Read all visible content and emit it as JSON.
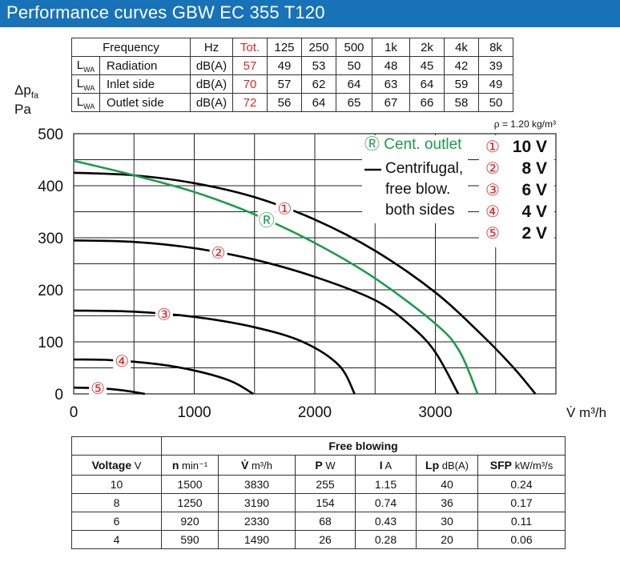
{
  "title": "Performance curves GBW EC 355 T120",
  "sound_table": {
    "headers": [
      "Frequency",
      "Hz",
      "Tot.",
      "125",
      "250",
      "500",
      "1k",
      "2k",
      "4k",
      "8k"
    ],
    "rows": [
      {
        "prefix": "L",
        "sub": "WA",
        "label": "Radiation",
        "unit": "dB(A)",
        "tot": "57",
        "values": [
          "49",
          "53",
          "50",
          "48",
          "45",
          "42",
          "39"
        ]
      },
      {
        "prefix": "L",
        "sub": "WA",
        "label": "Inlet side",
        "unit": "dB(A)",
        "tot": "70",
        "values": [
          "57",
          "62",
          "64",
          "63",
          "64",
          "59",
          "49"
        ]
      },
      {
        "prefix": "L",
        "sub": "WA",
        "label": "Outlet side",
        "unit": "dB(A)",
        "tot": "72",
        "values": [
          "56",
          "64",
          "65",
          "67",
          "66",
          "58",
          "50"
        ]
      }
    ]
  },
  "chart_data": {
    "type": "line",
    "ylabel_main": "Δp",
    "ylabel_sub": "fa",
    "yunit": "Pa",
    "xlabel": "V̇  m³/h",
    "density_note": "ρ = 1.20 kg/m³",
    "xlim": [
      0,
      4000
    ],
    "ylim": [
      0,
      500
    ],
    "xticks": [
      "0",
      "1000",
      "2000",
      "3000"
    ],
    "yticks": [
      "0",
      "100",
      "200",
      "300",
      "400",
      "500"
    ],
    "grid": true,
    "colors": {
      "centrifugal": "#000000",
      "outlet": "#1c9c4a",
      "marker": "#d42a2a"
    },
    "series": [
      {
        "label": "①",
        "kind": "centrifugal",
        "points": [
          [
            0,
            425
          ],
          [
            500,
            420
          ],
          [
            1000,
            405
          ],
          [
            1500,
            378
          ],
          [
            2000,
            335
          ],
          [
            2500,
            275
          ],
          [
            3000,
            195
          ],
          [
            3400,
            110
          ],
          [
            3650,
            50
          ],
          [
            3830,
            0
          ]
        ]
      },
      {
        "label": "②",
        "kind": "centrifugal",
        "points": [
          [
            0,
            295
          ],
          [
            500,
            292
          ],
          [
            1000,
            280
          ],
          [
            1500,
            258
          ],
          [
            2000,
            225
          ],
          [
            2500,
            180
          ],
          [
            2800,
            130
          ],
          [
            3000,
            80
          ],
          [
            3190,
            0
          ]
        ]
      },
      {
        "label": "③",
        "kind": "centrifugal",
        "points": [
          [
            0,
            160
          ],
          [
            500,
            158
          ],
          [
            1000,
            148
          ],
          [
            1500,
            128
          ],
          [
            1900,
            100
          ],
          [
            2200,
            55
          ],
          [
            2330,
            0
          ]
        ]
      },
      {
        "label": "④",
        "kind": "centrifugal",
        "points": [
          [
            0,
            66
          ],
          [
            300,
            65
          ],
          [
            700,
            57
          ],
          [
            1000,
            45
          ],
          [
            1300,
            25
          ],
          [
            1490,
            0
          ]
        ]
      },
      {
        "label": "⑤",
        "kind": "centrifugal",
        "points": [
          [
            0,
            12
          ],
          [
            200,
            11
          ],
          [
            400,
            7
          ],
          [
            590,
            0
          ]
        ]
      },
      {
        "label": "Ⓡ",
        "kind": "outlet",
        "points": [
          [
            0,
            448
          ],
          [
            500,
            420
          ],
          [
            1000,
            388
          ],
          [
            1500,
            345
          ],
          [
            2000,
            290
          ],
          [
            2500,
            222
          ],
          [
            3000,
            135
          ],
          [
            3200,
            82
          ],
          [
            3350,
            0
          ]
        ]
      }
    ],
    "legend": {
      "outlet_label": "Ⓡ Cent. outlet",
      "centrifugal_lines": [
        "Centrifugal,",
        "free blow.",
        "both sides"
      ],
      "voltages": [
        {
          "mark": "①",
          "value": "10 V"
        },
        {
          "mark": "②",
          "value": "8 V"
        },
        {
          "mark": "③",
          "value": "6 V"
        },
        {
          "mark": "④",
          "value": "4 V"
        },
        {
          "mark": "⑤",
          "value": "2 V"
        }
      ]
    }
  },
  "free_blowing_table": {
    "group_header": "Free blowing",
    "headers": [
      {
        "b": "Voltage",
        "u": " V"
      },
      {
        "b": "n",
        "u": " min⁻¹"
      },
      {
        "b": "V̇",
        "u": " m³/h"
      },
      {
        "b": "P",
        "u": " W"
      },
      {
        "b": "I",
        "u": " A"
      },
      {
        "b": "Lp",
        "u": " dB(A)"
      },
      {
        "b": "SFP",
        "u": " kW/m³/s"
      }
    ],
    "rows": [
      [
        "10",
        "1500",
        "3830",
        "255",
        "1.15",
        "40",
        "0.24"
      ],
      [
        "8",
        "1250",
        "3190",
        "154",
        "0.74",
        "36",
        "0.17"
      ],
      [
        "6",
        "920",
        "2330",
        "68",
        "0.43",
        "30",
        "0.11"
      ],
      [
        "4",
        "590",
        "1490",
        "26",
        "0.28",
        "20",
        "0.06"
      ]
    ]
  }
}
